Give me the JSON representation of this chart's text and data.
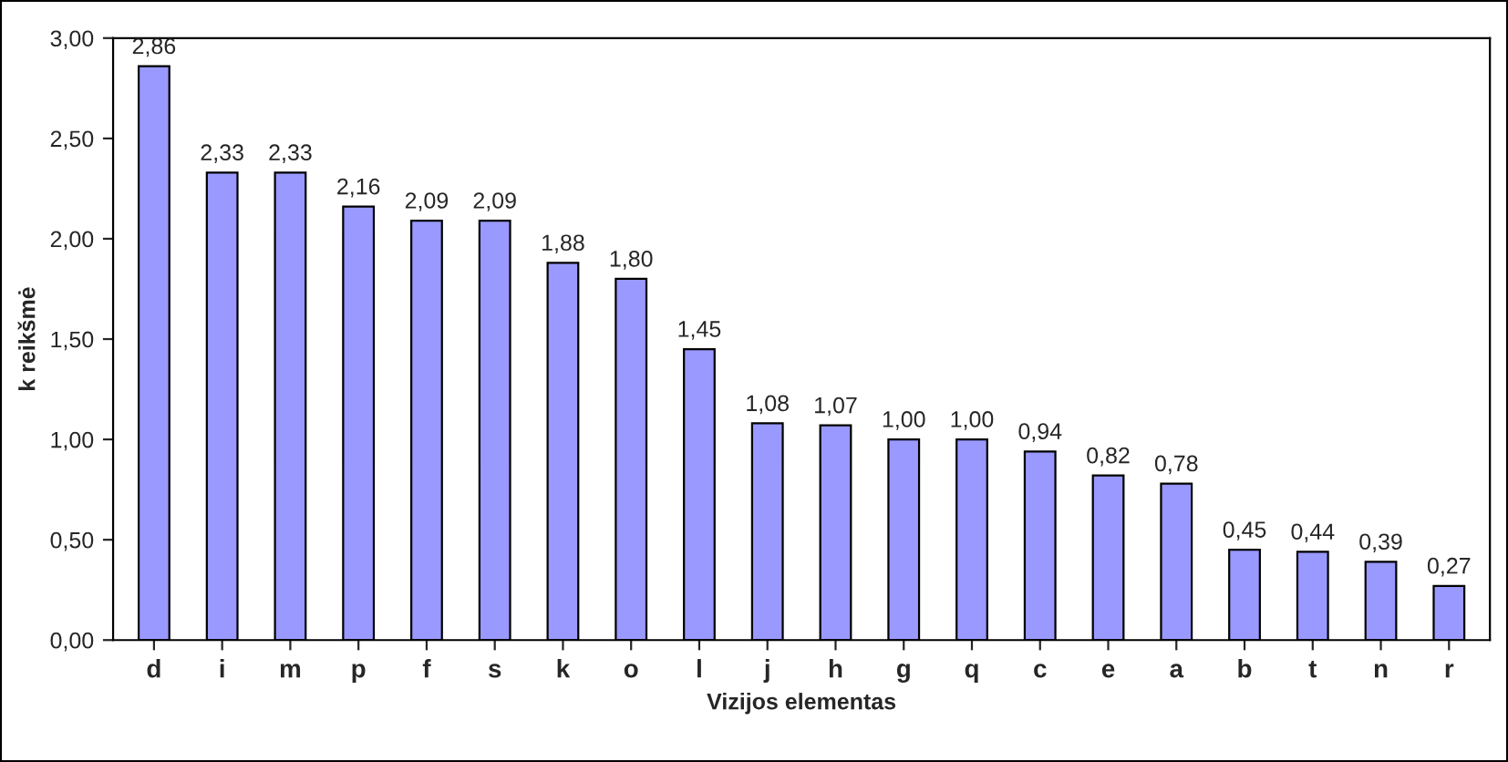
{
  "chart_data": {
    "type": "bar",
    "xlabel": "Vizijos elementas",
    "ylabel": "k reikšmė",
    "categories": [
      "d",
      "i",
      "m",
      "p",
      "f",
      "s",
      "k",
      "o",
      "l",
      "j",
      "h",
      "g",
      "q",
      "c",
      "e",
      "a",
      "b",
      "t",
      "n",
      "r"
    ],
    "values": [
      2.86,
      2.33,
      2.33,
      2.16,
      2.09,
      2.09,
      1.88,
      1.8,
      1.45,
      1.08,
      1.07,
      1.0,
      1.0,
      0.94,
      0.82,
      0.78,
      0.45,
      0.44,
      0.39,
      0.27
    ],
    "value_labels": [
      "2,86",
      "2,33",
      "2,33",
      "2,16",
      "2,09",
      "2,09",
      "1,88",
      "1,80",
      "1,45",
      "1,08",
      "1,07",
      "1,00",
      "1,00",
      "0,94",
      "0,82",
      "0,78",
      "0,45",
      "0,44",
      "0,39",
      "0,27"
    ],
    "color": "#9999ff",
    "ylim": [
      0,
      3
    ],
    "yticks": [
      {
        "value": 0,
        "label": "0,00"
      },
      {
        "value": 0.5,
        "label": "0,50"
      },
      {
        "value": 1,
        "label": "1,00"
      },
      {
        "value": 1.5,
        "label": "1,50"
      },
      {
        "value": 2,
        "label": "2,00"
      },
      {
        "value": 2.5,
        "label": "2,50"
      },
      {
        "value": 3,
        "label": "3,00"
      }
    ],
    "grid": false
  }
}
